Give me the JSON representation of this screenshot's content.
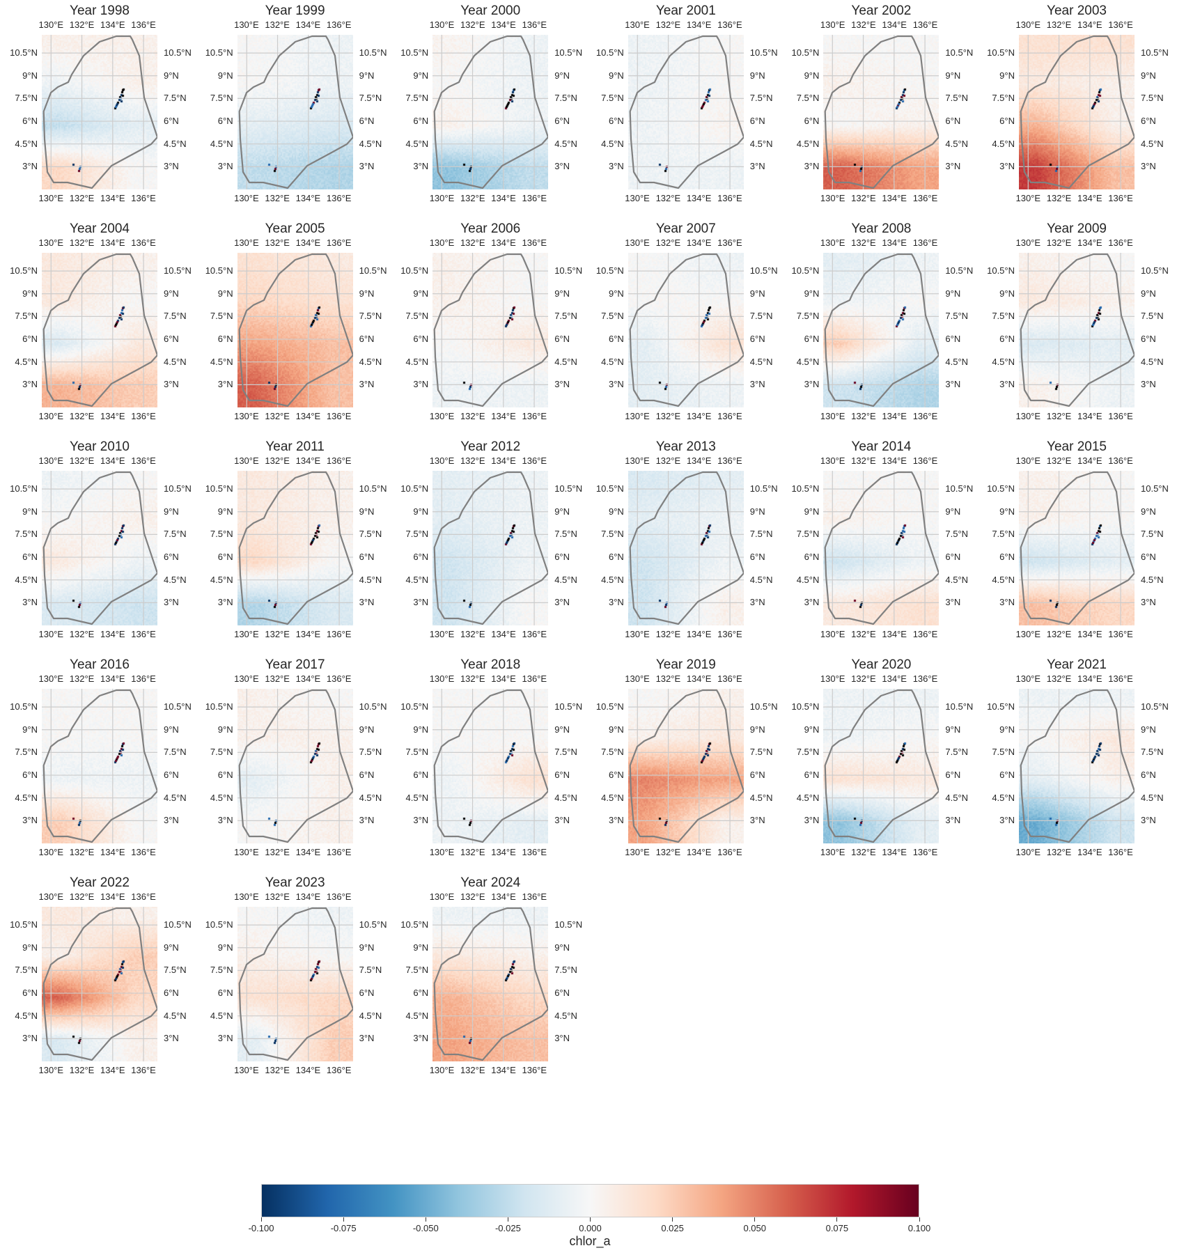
{
  "chart_data": {
    "type": "heatmap",
    "variable": "chlor_a",
    "colormap": "RdBu_r",
    "colorbar": {
      "label": "chlor_a",
      "range": [
        -0.1,
        0.1
      ],
      "ticks": [
        "-0.100",
        "-0.075",
        "-0.050",
        "-0.025",
        "0.000",
        "0.025",
        "0.050",
        "0.075",
        "0.100"
      ],
      "orientation": "horizontal",
      "placement": "bottom"
    },
    "lon_range": [
      129.4,
      136.9
    ],
    "lat_range": [
      1.5,
      11.7
    ],
    "lon_tick_labels": [
      "130°E",
      "132°E",
      "134°E",
      "136°E"
    ],
    "lat_tick_labels": [
      "10.5°N",
      "9°N",
      "7.5°N",
      "6°N",
      "4.5°N",
      "3°N"
    ],
    "grid": true,
    "band_note_keys": [
      "north",
      "upper",
      "middle",
      "south"
    ],
    "panels": [
      {
        "title": "Year 1998",
        "bands": [
          [
            0.005,
            0.005
          ],
          [
            -0.005,
            0.005
          ],
          [
            -0.025,
            -0.01
          ],
          [
            0.02,
            0.0
          ]
        ]
      },
      {
        "title": "Year 1999",
        "bands": [
          [
            0,
            -0.005
          ],
          [
            0,
            -0.005
          ],
          [
            -0.01,
            -0.015
          ],
          [
            -0.025,
            -0.03
          ]
        ]
      },
      {
        "title": "Year 2000",
        "bands": [
          [
            0.003,
            -0.005
          ],
          [
            0,
            -0.005
          ],
          [
            0.005,
            -0.005
          ],
          [
            -0.04,
            -0.025
          ]
        ]
      },
      {
        "title": "Year 2001",
        "bands": [
          [
            -0.005,
            0
          ],
          [
            -0.005,
            0
          ],
          [
            -0.005,
            0.003
          ],
          [
            -0.005,
            -0.005
          ]
        ]
      },
      {
        "title": "Year 2002",
        "bands": [
          [
            0,
            0
          ],
          [
            0.005,
            0
          ],
          [
            0,
            0.005
          ],
          [
            0.06,
            0.04
          ]
        ]
      },
      {
        "title": "Year 2003",
        "bands": [
          [
            0.015,
            0.015
          ],
          [
            0.01,
            0.005
          ],
          [
            0.035,
            0.005
          ],
          [
            0.07,
            0.03
          ]
        ]
      },
      {
        "title": "Year 2004",
        "bands": [
          [
            0.01,
            0.005
          ],
          [
            0.01,
            0
          ],
          [
            -0.015,
            0.01
          ],
          [
            0.035,
            0.025
          ]
        ]
      },
      {
        "title": "Year 2005",
        "bands": [
          [
            0.015,
            0.01
          ],
          [
            0.02,
            0.015
          ],
          [
            0.04,
            0.03
          ],
          [
            0.06,
            0.03
          ]
        ]
      },
      {
        "title": "Year 2006",
        "bands": [
          [
            0.005,
            0
          ],
          [
            0.005,
            0
          ],
          [
            0,
            0.01
          ],
          [
            -0.005,
            -0.005
          ]
        ]
      },
      {
        "title": "Year 2007",
        "bands": [
          [
            0,
            -0.005
          ],
          [
            0,
            0
          ],
          [
            -0.01,
            0.015
          ],
          [
            -0.01,
            -0.005
          ]
        ]
      },
      {
        "title": "Year 2008",
        "bands": [
          [
            -0.01,
            -0.005
          ],
          [
            -0.005,
            0
          ],
          [
            0.025,
            -0.01
          ],
          [
            -0.02,
            -0.03
          ]
        ]
      },
      {
        "title": "Year 2009",
        "bands": [
          [
            0.005,
            0
          ],
          [
            0.01,
            0.005
          ],
          [
            -0.015,
            -0.01
          ],
          [
            0.005,
            -0.005
          ]
        ]
      },
      {
        "title": "Year 2010",
        "bands": [
          [
            -0.005,
            0
          ],
          [
            0,
            0.005
          ],
          [
            0.01,
            -0.005
          ],
          [
            -0.015,
            -0.02
          ]
        ]
      },
      {
        "title": "Year 2011",
        "bands": [
          [
            0.01,
            0.005
          ],
          [
            0.01,
            0.005
          ],
          [
            0.02,
            0
          ],
          [
            -0.03,
            -0.015
          ]
        ]
      },
      {
        "title": "Year 2012",
        "bands": [
          [
            -0.01,
            -0.005
          ],
          [
            -0.01,
            -0.005
          ],
          [
            -0.02,
            -0.005
          ],
          [
            -0.02,
            0
          ]
        ]
      },
      {
        "title": "Year 2013",
        "bands": [
          [
            -0.015,
            -0.01
          ],
          [
            -0.01,
            -0.005
          ],
          [
            -0.02,
            -0.005
          ],
          [
            -0.02,
            0.005
          ]
        ]
      },
      {
        "title": "Year 2014",
        "bands": [
          [
            0,
            0
          ],
          [
            0.005,
            0
          ],
          [
            -0.02,
            -0.005
          ],
          [
            0.01,
            0.015
          ]
        ]
      },
      {
        "title": "Year 2015",
        "bands": [
          [
            0.005,
            0
          ],
          [
            0.005,
            0
          ],
          [
            -0.02,
            -0.01
          ],
          [
            0.03,
            0.02
          ]
        ]
      },
      {
        "title": "Year 2016",
        "bands": [
          [
            0,
            0
          ],
          [
            0,
            0
          ],
          [
            -0.005,
            -0.005
          ],
          [
            0.025,
            0
          ]
        ]
      },
      {
        "title": "Year 2017",
        "bands": [
          [
            0.005,
            0
          ],
          [
            0.005,
            0.005
          ],
          [
            -0.01,
            0.005
          ],
          [
            0,
            0.005
          ]
        ]
      },
      {
        "title": "Year 2018",
        "bands": [
          [
            0,
            0
          ],
          [
            0,
            0
          ],
          [
            -0.005,
            0.015
          ],
          [
            -0.005,
            -0.01
          ]
        ]
      },
      {
        "title": "Year 2019",
        "bands": [
          [
            0,
            0.005
          ],
          [
            0.005,
            0.01
          ],
          [
            0.05,
            0.04
          ],
          [
            0.04,
            0.005
          ]
        ]
      },
      {
        "title": "Year 2020",
        "bands": [
          [
            -0.005,
            -0.005
          ],
          [
            -0.005,
            0
          ],
          [
            0.015,
            0.01
          ],
          [
            -0.04,
            -0.01
          ]
        ]
      },
      {
        "title": "Year 2021",
        "bands": [
          [
            -0.005,
            -0.005
          ],
          [
            0,
            0.01
          ],
          [
            -0.01,
            0.005
          ],
          [
            -0.05,
            -0.02
          ]
        ]
      },
      {
        "title": "Year 2022",
        "bands": [
          [
            0.01,
            0.005
          ],
          [
            0.005,
            0.025
          ],
          [
            0.06,
            0.02
          ],
          [
            -0.015,
            0.005
          ]
        ]
      },
      {
        "title": "Year 2023",
        "bands": [
          [
            0,
            -0.005
          ],
          [
            0.005,
            0
          ],
          [
            0.015,
            0.02
          ],
          [
            -0.01,
            0.025
          ]
        ]
      },
      {
        "title": "Year 2024",
        "bands": [
          [
            -0.005,
            -0.005
          ],
          [
            0.01,
            0.005
          ],
          [
            0.035,
            0.02
          ],
          [
            0.04,
            0.03
          ]
        ]
      }
    ]
  },
  "colors": {
    "boundary": "#808080",
    "grid": "#cccccc",
    "cmap_stops": [
      "#053061",
      "#2166ac",
      "#4393c3",
      "#92c5de",
      "#d1e5f0",
      "#f7f7f7",
      "#fddbc7",
      "#f4a582",
      "#d6604d",
      "#b2182b",
      "#67001f"
    ]
  }
}
